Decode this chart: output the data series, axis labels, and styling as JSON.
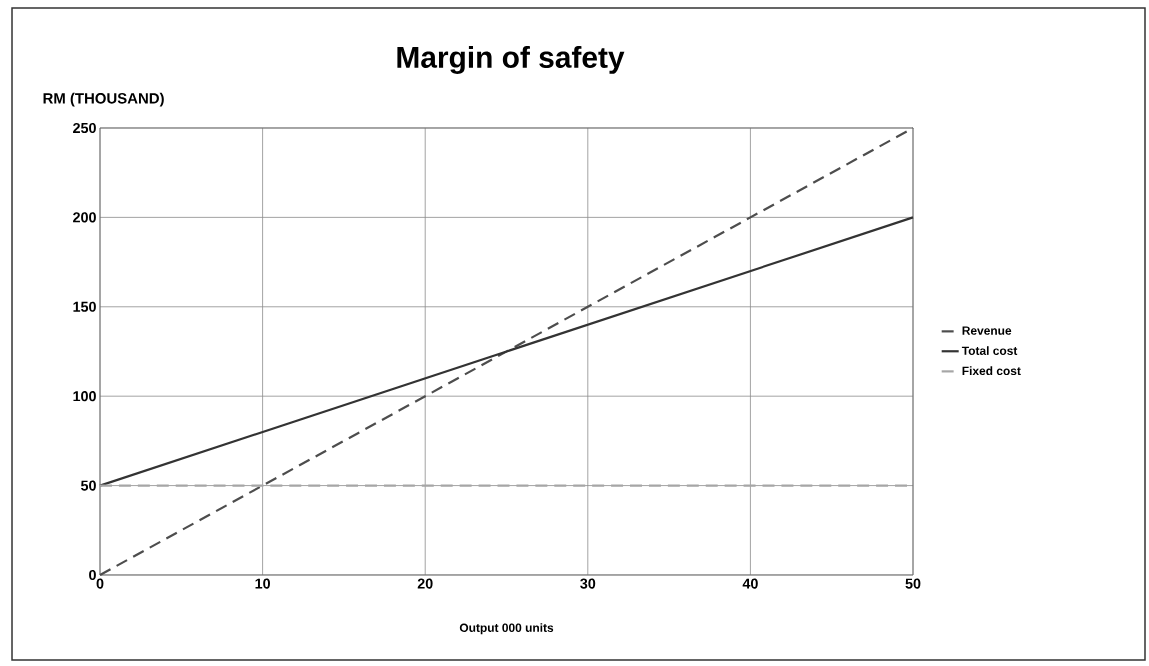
{
  "chart_data": {
    "type": "line",
    "title": "Margin of safety",
    "xlabel": "Output 000 units",
    "ylabel": "RM (THOUSAND)",
    "x": [
      0,
      10,
      20,
      30,
      40,
      50
    ],
    "series": [
      {
        "name": "Revenue",
        "color": "#4d4d4d",
        "line_style": "dashed",
        "values": [
          0,
          50,
          100,
          150,
          200,
          250
        ]
      },
      {
        "name": "Total cost",
        "color": "#333333",
        "line_style": "solid",
        "values": [
          50,
          80,
          110,
          140,
          170,
          200
        ]
      },
      {
        "name": "Fixed cost",
        "color": "#a6a6a6",
        "line_style": "dashed",
        "values": [
          50,
          50,
          50,
          50,
          50,
          50
        ]
      }
    ],
    "xlim": [
      0,
      50
    ],
    "ylim": [
      0,
      250
    ],
    "xticks": [
      0,
      10,
      20,
      30,
      40,
      50
    ],
    "yticks": [
      0,
      50,
      100,
      150,
      200,
      250
    ],
    "grid": true,
    "legend": "right",
    "marker": "none"
  }
}
